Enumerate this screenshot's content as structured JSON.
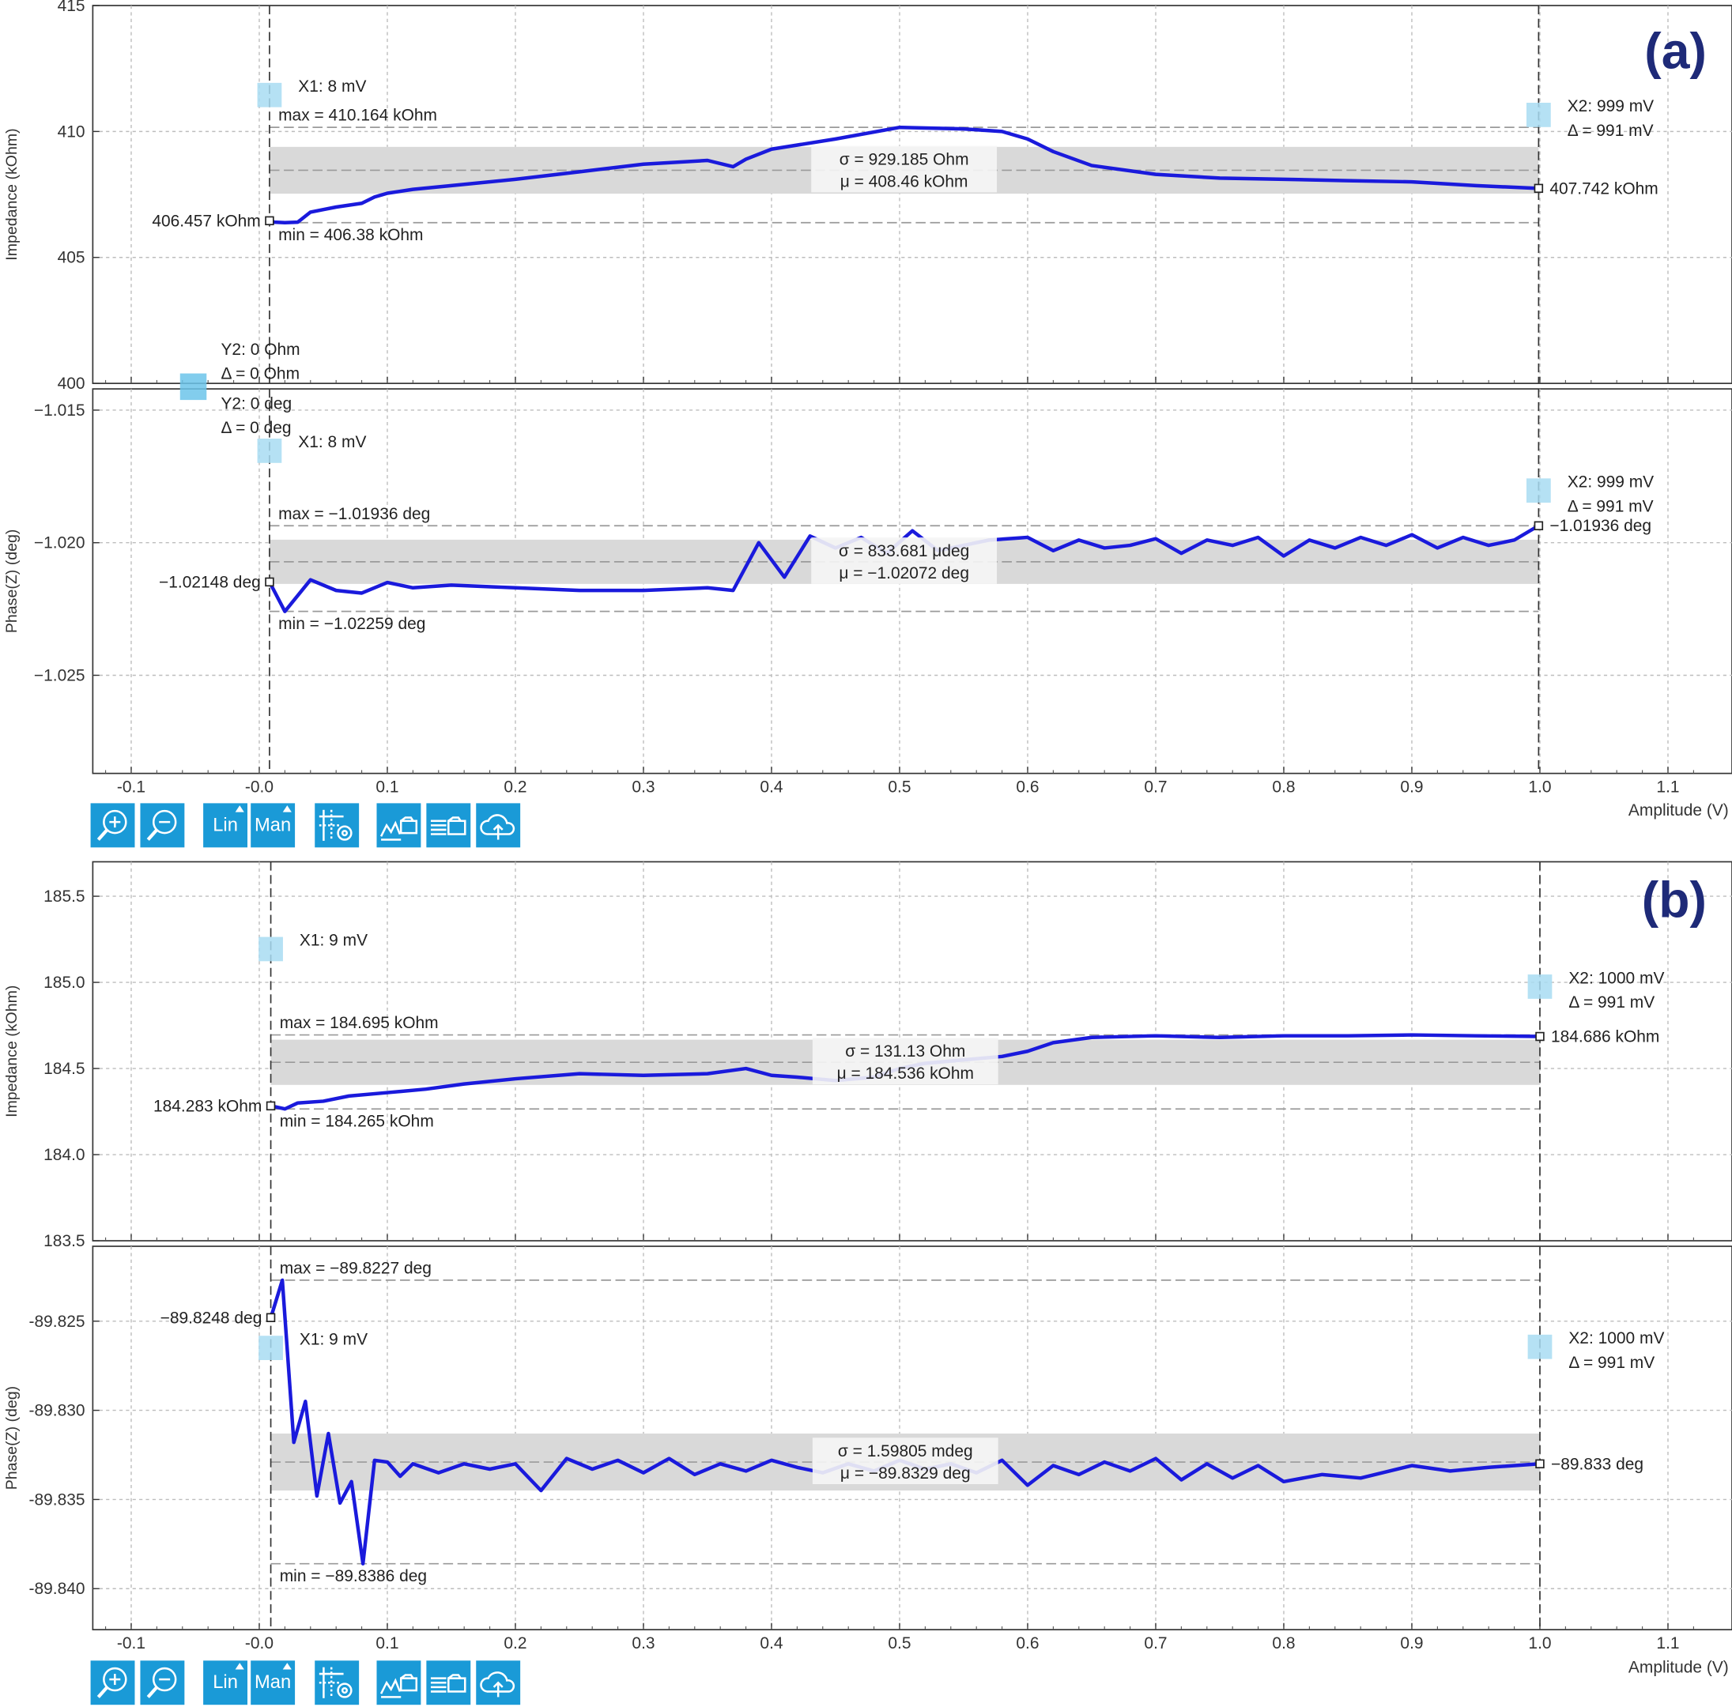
{
  "figure": {
    "panel_labels": [
      "(a)",
      "(b)"
    ],
    "x_axis_label": "Amplitude (V)",
    "x_ticks": [
      "-0.1",
      "-0.0",
      "0.1",
      "0.2",
      "0.3",
      "0.4",
      "0.5",
      "0.6",
      "0.7",
      "0.8",
      "0.9",
      "1.0",
      "1.1"
    ]
  },
  "toolbar": {
    "buttons": [
      {
        "icon": "zoom-in-icon",
        "label": ""
      },
      {
        "icon": "zoom-out-icon",
        "label": ""
      },
      {
        "icon": "",
        "label": "Lin"
      },
      {
        "icon": "",
        "label": "Man"
      },
      {
        "icon": "cursor-settings-icon",
        "label": ""
      },
      {
        "icon": "save-plot-icon",
        "label": ""
      },
      {
        "icon": "save-table-icon",
        "label": ""
      },
      {
        "icon": "cloud-upload-icon",
        "label": ""
      }
    ]
  },
  "colors": {
    "trace": "#1a1adc",
    "band": "#d9d9d9",
    "cursor_box": "#a8dcf2",
    "toolbar": "#1a9ad7",
    "grid": "#bdbdbd",
    "panel_label": "#1e2a78"
  },
  "chart_data": [
    {
      "type": "line",
      "panel": "(a)",
      "ylabel": "Impedance (kOhm)",
      "xlabel": "Amplitude (V)",
      "xlim": [
        -0.13,
        1.15
      ],
      "ylim": [
        400,
        415
      ],
      "y_ticks": [
        "400",
        "405",
        "410",
        "415"
      ],
      "series": [
        {
          "x": [
            0.008,
            0.012,
            0.02,
            0.03,
            0.04,
            0.05,
            0.06,
            0.08,
            0.09,
            0.1,
            0.12,
            0.15,
            0.2,
            0.25,
            0.3,
            0.35,
            0.37,
            0.38,
            0.4,
            0.45,
            0.5,
            0.55,
            0.58,
            0.6,
            0.62,
            0.65,
            0.7,
            0.75,
            0.8,
            0.85,
            0.9,
            0.95,
            0.999
          ],
          "y": [
            406.457,
            406.4,
            406.38,
            406.4,
            406.8,
            406.9,
            407.0,
            407.15,
            407.4,
            407.55,
            407.7,
            407.85,
            408.1,
            408.4,
            408.7,
            408.85,
            408.6,
            408.9,
            409.3,
            409.7,
            410.164,
            410.1,
            410.0,
            409.7,
            409.2,
            408.65,
            408.3,
            408.15,
            408.1,
            408.05,
            408.0,
            407.85,
            407.742
          ]
        }
      ],
      "stats": {
        "max": "max = 410.164 kOhm",
        "min": "min = 406.38 kOhm",
        "sigma": "σ = 929.185 Ohm",
        "mu": "μ = 408.46 kOhm",
        "max_value": 410.164,
        "min_value": 406.38,
        "mu_value": 408.46,
        "sigma_value": 0.929185
      },
      "cursors": {
        "x1": "X1: 8 mV",
        "x2": "X2: 999 mV",
        "x_delta": "Δ = 991 mV",
        "y2": "Y2: 0 Ohm",
        "y_delta": "Δ = 0 Ohm",
        "x1_value": 0.008,
        "x2_value": 0.999
      },
      "marker_labels": {
        "left": "406.457 kOhm",
        "right": "407.742 kOhm",
        "left_value": 406.457,
        "right_value": 407.742
      }
    },
    {
      "type": "line",
      "panel": "(a)",
      "ylabel": "Phase(Z) (deg)",
      "xlabel": "Amplitude (V)",
      "xlim": [
        -0.13,
        1.15
      ],
      "ylim": [
        -1.0287,
        -1.0142
      ],
      "y_ticks": [
        "−1.015",
        "−1.020",
        "−1.025"
      ],
      "series": [
        {
          "x": [
            0.008,
            0.02,
            0.04,
            0.06,
            0.08,
            0.1,
            0.12,
            0.15,
            0.2,
            0.25,
            0.3,
            0.35,
            0.37,
            0.39,
            0.41,
            0.43,
            0.45,
            0.47,
            0.49,
            0.51,
            0.53,
            0.55,
            0.57,
            0.6,
            0.62,
            0.64,
            0.66,
            0.68,
            0.7,
            0.72,
            0.74,
            0.76,
            0.78,
            0.8,
            0.82,
            0.84,
            0.86,
            0.88,
            0.9,
            0.92,
            0.94,
            0.96,
            0.98,
            0.999
          ],
          "y": [
            -1.02148,
            -1.02259,
            -1.0214,
            -1.0218,
            -1.0219,
            -1.0215,
            -1.0217,
            -1.0216,
            -1.0217,
            -1.0218,
            -1.0218,
            -1.0217,
            -1.0218,
            -1.02,
            -1.0213,
            -1.01975,
            -1.0202,
            -1.0198,
            -1.0204,
            -1.01955,
            -1.0203,
            -1.0201,
            -1.0199,
            -1.0198,
            -1.0203,
            -1.0199,
            -1.0202,
            -1.0201,
            -1.01985,
            -1.0204,
            -1.0199,
            -1.0201,
            -1.0198,
            -1.0205,
            -1.0199,
            -1.0202,
            -1.0198,
            -1.0201,
            -1.0197,
            -1.0202,
            -1.0198,
            -1.0201,
            -1.0199,
            -1.01936
          ]
        }
      ],
      "stats": {
        "max": "max = −1.01936 deg",
        "min": "min = −1.02259 deg",
        "sigma": "σ = 833.681 μdeg",
        "mu": "μ = −1.02072 deg",
        "max_value": -1.01936,
        "min_value": -1.02259,
        "mu_value": -1.02072,
        "sigma_value": 0.000833681
      },
      "cursors": {
        "x1": "X1: 8 mV",
        "x2": "X2: 999 mV",
        "x_delta": "Δ = 991 mV",
        "y2": "Y2: 0 deg",
        "y_delta": "Δ = 0 deg",
        "x1_value": 0.008,
        "x2_value": 0.999
      },
      "marker_labels": {
        "left": "−1.02148 deg",
        "right": "−1.01936 deg",
        "left_value": -1.02148,
        "right_value": -1.01936
      }
    },
    {
      "type": "line",
      "panel": "(b)",
      "ylabel": "Impedance (kOhm)",
      "xlabel": "Amplitude (V)",
      "xlim": [
        -0.13,
        1.15
      ],
      "ylim": [
        183.5,
        185.7
      ],
      "y_ticks": [
        "183.5",
        "184.0",
        "184.5",
        "185.0",
        "185.5"
      ],
      "series": [
        {
          "x": [
            0.009,
            0.02,
            0.03,
            0.05,
            0.07,
            0.1,
            0.13,
            0.16,
            0.2,
            0.25,
            0.3,
            0.35,
            0.38,
            0.4,
            0.42,
            0.45,
            0.48,
            0.5,
            0.52,
            0.55,
            0.58,
            0.6,
            0.62,
            0.65,
            0.7,
            0.75,
            0.8,
            0.85,
            0.9,
            0.95,
            1.0
          ],
          "y": [
            184.283,
            184.265,
            184.3,
            184.31,
            184.34,
            184.36,
            184.38,
            184.41,
            184.44,
            184.47,
            184.46,
            184.47,
            184.5,
            184.46,
            184.45,
            184.43,
            184.45,
            184.5,
            184.53,
            184.55,
            184.57,
            184.6,
            184.65,
            184.68,
            184.69,
            184.68,
            184.69,
            184.69,
            184.695,
            184.69,
            184.686
          ]
        }
      ],
      "stats": {
        "max": "max = 184.695 kOhm",
        "min": "min = 184.265 kOhm",
        "sigma": "σ = 131.13 Ohm",
        "mu": "μ = 184.536 kOhm",
        "max_value": 184.695,
        "min_value": 184.265,
        "mu_value": 184.536,
        "sigma_value": 0.13113
      },
      "cursors": {
        "x1": "X1: 9 mV",
        "x2": "X2: 1000 mV",
        "x_delta": "Δ = 991 mV",
        "x1_value": 0.009,
        "x2_value": 1.0
      },
      "marker_labels": {
        "left": "184.283 kOhm",
        "right": "184.686 kOhm",
        "left_value": 184.283,
        "right_value": 184.686
      }
    },
    {
      "type": "line",
      "panel": "(b)",
      "ylabel": "Phase(Z) (deg)",
      "xlabel": "Amplitude (V)",
      "xlim": [
        -0.13,
        1.15
      ],
      "ylim": [
        -89.8423,
        -89.8208
      ],
      "y_ticks": [
        "-89.825",
        "-89.830",
        "-89.835",
        "-89.840"
      ],
      "series": [
        {
          "x": [
            0.009,
            0.018,
            0.027,
            0.036,
            0.045,
            0.054,
            0.063,
            0.072,
            0.081,
            0.09,
            0.1,
            0.11,
            0.12,
            0.14,
            0.16,
            0.18,
            0.2,
            0.22,
            0.24,
            0.26,
            0.28,
            0.3,
            0.32,
            0.34,
            0.36,
            0.38,
            0.4,
            0.42,
            0.44,
            0.46,
            0.48,
            0.5,
            0.52,
            0.54,
            0.56,
            0.58,
            0.6,
            0.62,
            0.64,
            0.66,
            0.68,
            0.7,
            0.72,
            0.74,
            0.76,
            0.78,
            0.8,
            0.83,
            0.86,
            0.9,
            0.93,
            0.96,
            1.0
          ],
          "y": [
            -89.8248,
            -89.8227,
            -89.8318,
            -89.8295,
            -89.8348,
            -89.8313,
            -89.8352,
            -89.834,
            -89.8386,
            -89.8328,
            -89.8329,
            -89.8337,
            -89.833,
            -89.8335,
            -89.833,
            -89.8333,
            -89.833,
            -89.8345,
            -89.8327,
            -89.8333,
            -89.8328,
            -89.8335,
            -89.8327,
            -89.8336,
            -89.833,
            -89.8334,
            -89.8328,
            -89.8332,
            -89.8335,
            -89.833,
            -89.8334,
            -89.8328,
            -89.8333,
            -89.833,
            -89.8335,
            -89.8328,
            -89.8342,
            -89.8331,
            -89.8336,
            -89.8329,
            -89.8334,
            -89.8327,
            -89.8339,
            -89.833,
            -89.8338,
            -89.8331,
            -89.834,
            -89.8336,
            -89.8338,
            -89.8331,
            -89.8334,
            -89.8332,
            -89.833
          ]
        }
      ],
      "stats": {
        "max": "max = −89.8227 deg",
        "min": "min = −89.8386 deg",
        "sigma": "σ = 1.59805 mdeg",
        "mu": "μ = −89.8329 deg",
        "max_value": -89.8227,
        "min_value": -89.8386,
        "mu_value": -89.8329,
        "sigma_value": 0.00159805
      },
      "cursors": {
        "x1": "X1: 9 mV",
        "x2": "X2: 1000 mV",
        "x_delta": "Δ = 991 mV",
        "x1_value": 0.009,
        "x2_value": 1.0
      },
      "marker_labels": {
        "left": "−89.8248 deg",
        "right": "−89.833 deg",
        "left_value": -89.8248,
        "right_value": -89.833
      }
    }
  ]
}
